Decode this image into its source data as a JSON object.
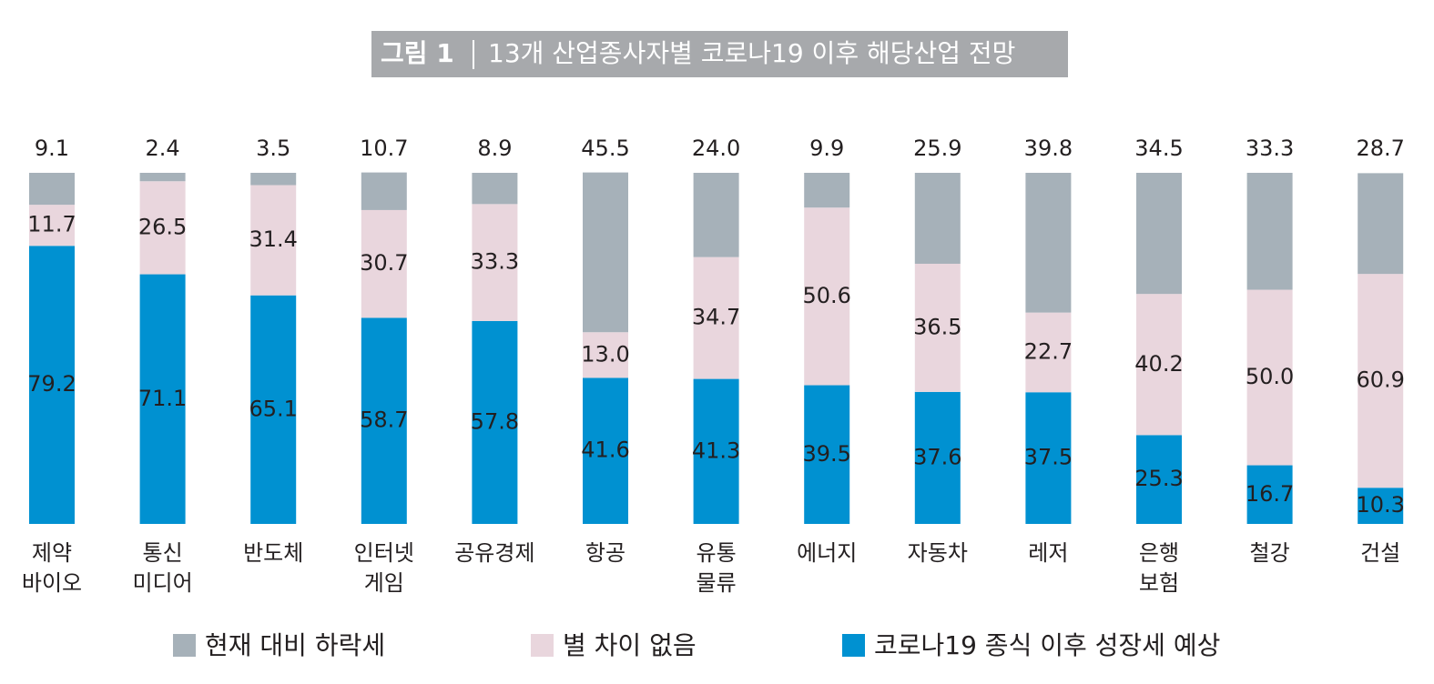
{
  "chart_data": {
    "type": "stacked_bar",
    "figure_label": "그림 1",
    "title": "13개 산업종사자별 코로나19 이후 해당산업 전망",
    "categories": [
      "제약\n바이오",
      "통신\n미디어",
      "반도체",
      "인터넷\n게임",
      "공유경제",
      "항공",
      "유통\n물류",
      "에너지",
      "자동차",
      "레저",
      "은행\n보험",
      "철강",
      "건설"
    ],
    "series": [
      {
        "name": "현재 대비 하락세",
        "color": "#a6b1b9",
        "values": [
          9.1,
          2.4,
          3.5,
          10.7,
          8.9,
          45.5,
          24.0,
          9.9,
          25.9,
          39.8,
          34.5,
          33.3,
          28.7
        ],
        "value_labels": [
          "9.1",
          "2.4",
          "3.5",
          "10.7",
          "8.9",
          "45.5",
          "24.0",
          "9.9",
          "25.9",
          "39.8",
          "34.5",
          "33.3",
          "28.7"
        ]
      },
      {
        "name": "별 차이 없음",
        "color": "#e9d6dd",
        "values": [
          11.7,
          26.5,
          31.4,
          30.7,
          33.3,
          13.0,
          34.7,
          50.6,
          36.5,
          22.7,
          40.2,
          50.0,
          60.9
        ],
        "value_labels": [
          "11.7",
          "26.5",
          "31.4",
          "30.7",
          "33.3",
          "13.0",
          "34.7",
          "50.6",
          "36.5",
          "22.7",
          "40.2",
          "50.0",
          "60.9"
        ]
      },
      {
        "name": "코로나19 종식 이후 성장세 예상",
        "color": "#0091d1",
        "values": [
          79.2,
          71.1,
          65.1,
          58.7,
          57.8,
          41.6,
          41.3,
          39.5,
          37.6,
          37.5,
          25.3,
          16.7,
          10.3
        ],
        "value_labels": [
          "79.2",
          "71.1",
          "65.1",
          "58.7",
          "57.8",
          "41.6",
          "41.3",
          "39.5",
          "37.6",
          "37.5",
          "25.3",
          "16.7",
          "10.3"
        ]
      }
    ],
    "ylim": [
      0,
      100
    ]
  }
}
